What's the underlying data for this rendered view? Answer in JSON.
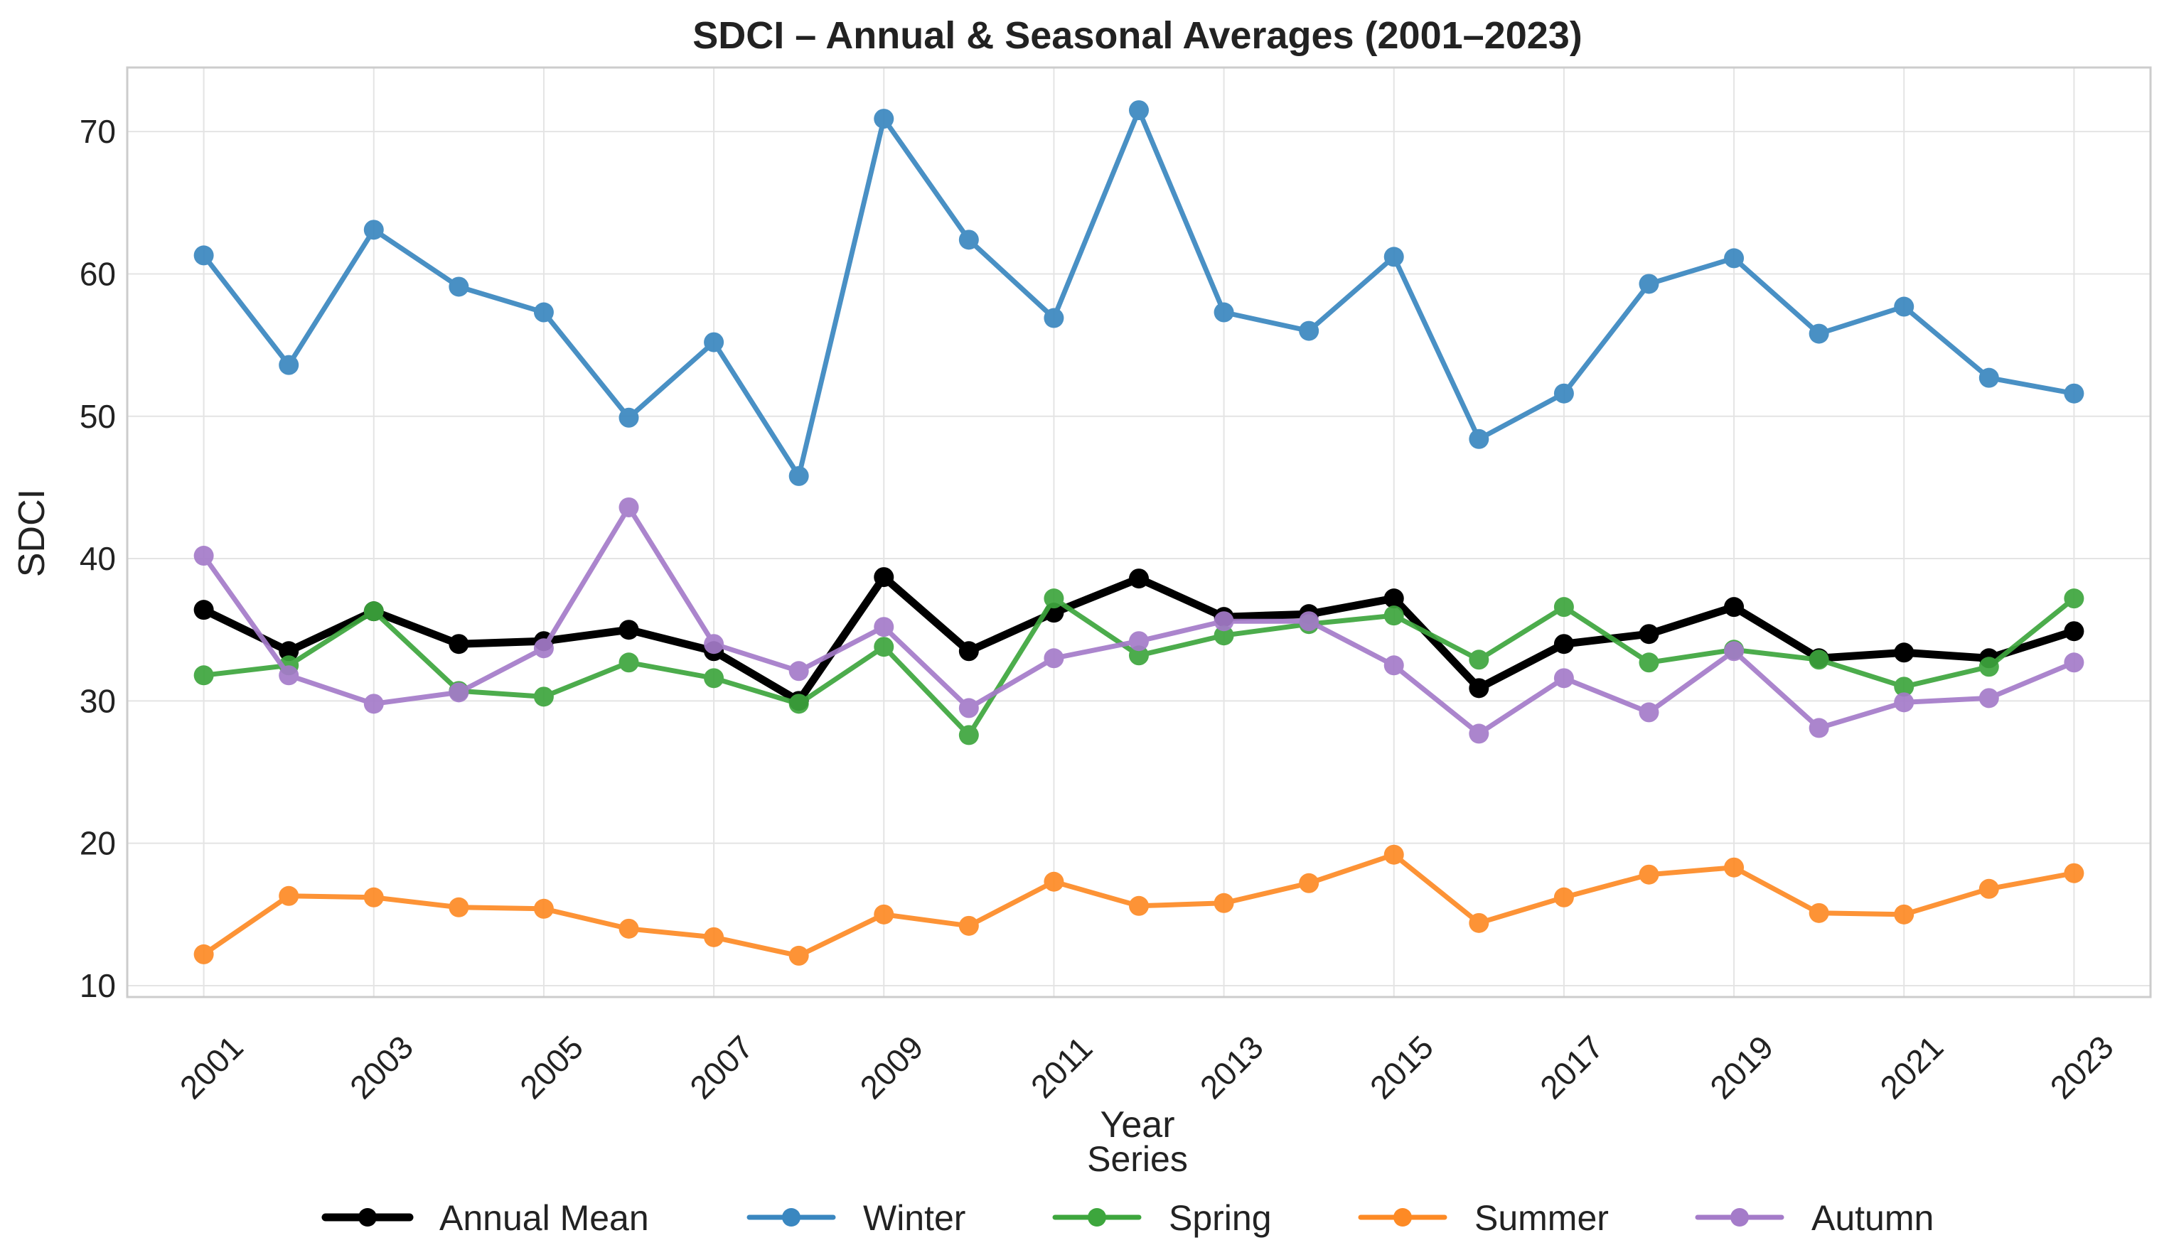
{
  "chart_data": {
    "type": "line",
    "title": "SDCI – Annual & Seasonal Averages (2001–2023)",
    "xlabel": "Year",
    "ylabel": "SDCI",
    "legend_title": "Series",
    "legend_position": "bottom",
    "grid": true,
    "ylim": [
      9.2,
      74.5
    ],
    "xlim": [
      2000.1,
      2023.9
    ],
    "y_ticks": [
      10,
      20,
      30,
      40,
      50,
      60,
      70
    ],
    "x_ticks": [
      2001,
      2003,
      2005,
      2007,
      2009,
      2011,
      2013,
      2015,
      2017,
      2019,
      2021,
      2023
    ],
    "x": [
      2001,
      2002,
      2003,
      2004,
      2005,
      2006,
      2007,
      2008,
      2009,
      2010,
      2011,
      2012,
      2013,
      2014,
      2015,
      2016,
      2017,
      2018,
      2019,
      2020,
      2021,
      2022,
      2023
    ],
    "series": [
      {
        "name": "Annual Mean",
        "color": "#000000",
        "values": [
          36.4,
          33.5,
          36.3,
          34.0,
          34.2,
          35.0,
          33.5,
          30.0,
          38.7,
          33.5,
          36.2,
          38.6,
          35.9,
          36.1,
          37.2,
          30.9,
          34.0,
          34.7,
          36.6,
          33.0,
          33.4,
          33.0,
          34.9
        ]
      },
      {
        "name": "Winter",
        "color": "#3a87c0",
        "values": [
          61.3,
          53.6,
          63.1,
          59.1,
          57.3,
          49.9,
          55.2,
          45.8,
          70.9,
          62.4,
          56.9,
          71.5,
          57.3,
          56.0,
          61.2,
          48.4,
          51.6,
          59.3,
          61.1,
          55.8,
          57.7,
          52.7,
          51.6
        ]
      },
      {
        "name": "Spring",
        "color": "#3da63d",
        "values": [
          31.8,
          32.5,
          36.3,
          30.7,
          30.3,
          32.7,
          31.6,
          29.8,
          33.8,
          27.6,
          37.2,
          33.2,
          34.6,
          35.4,
          36.0,
          32.9,
          36.6,
          32.7,
          33.6,
          32.9,
          31.0,
          32.4,
          37.2
        ]
      },
      {
        "name": "Summer",
        "color": "#fd8a25",
        "values": [
          12.2,
          16.3,
          16.2,
          15.5,
          15.4,
          14.0,
          13.4,
          12.1,
          15.0,
          14.2,
          17.3,
          15.6,
          15.8,
          17.2,
          19.2,
          14.4,
          16.2,
          17.8,
          18.3,
          15.1,
          15.0,
          16.8,
          17.9
        ]
      },
      {
        "name": "Autumn",
        "color": "#a47bc9",
        "values": [
          40.2,
          31.8,
          29.8,
          30.6,
          33.7,
          43.6,
          34.0,
          32.1,
          35.2,
          29.5,
          33.0,
          34.2,
          35.6,
          35.6,
          32.5,
          27.7,
          31.6,
          29.2,
          33.5,
          28.1,
          29.9,
          30.2,
          32.7
        ]
      }
    ]
  }
}
